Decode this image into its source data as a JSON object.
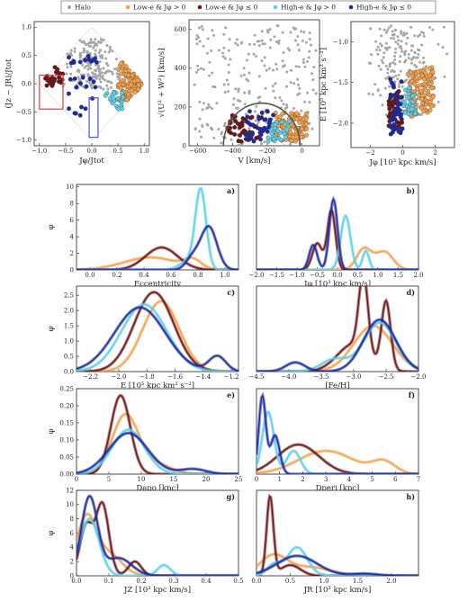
{
  "legend": [
    {
      "label": "Halo",
      "color": "#a6a6a6"
    },
    {
      "label": "Low-e & Jφ > 0",
      "color": "#f5a14a"
    },
    {
      "label": "Low-e & Jφ ≤ 0",
      "color": "#6e1414"
    },
    {
      "label": "High-e & Jφ > 0",
      "color": "#5bd1e8"
    },
    {
      "label": "High-e & Jφ ≤ 0",
      "color": "#1c2aa6"
    }
  ],
  "chart_data": [
    {
      "type": "scatter",
      "id": "action-diamond",
      "xlabel": "Jφ/Jtot",
      "ylabel": "(Jz − JR)/Jtot",
      "xlim": [
        -1.1,
        1.1
      ],
      "ylim": [
        -1.1,
        1.1
      ],
      "xticks": [
        "−1.0",
        "−0.5",
        "0.0",
        "0.5",
        "1.0"
      ],
      "yticks": [
        "1.0",
        "0.5",
        "0.0",
        "−0.5",
        "−1.0"
      ]
    },
    {
      "type": "scatter",
      "id": "toomre",
      "xlabel": "V [km/s]",
      "ylabel": "√(U² + W²) [km/s]",
      "xlim": [
        -650,
        100
      ],
      "ylim": [
        0,
        650
      ],
      "xticks": [
        "−600",
        "−400",
        "−200",
        "0"
      ],
      "yticks": [
        "600",
        "400",
        "200",
        "0"
      ]
    },
    {
      "type": "scatter",
      "id": "energy-lz",
      "xlabel": "Jφ [10³ kpc km/s]",
      "ylabel": "E [10⁵ kpc km² s⁻²]",
      "xlim": [
        -3.2,
        3.2
      ],
      "ylim": [
        -2.3,
        -0.75
      ],
      "xticks": [
        "−2",
        "0",
        "2"
      ],
      "yticks": [
        "−1.0",
        "−1.5",
        "−2.0"
      ]
    },
    {
      "type": "line",
      "panel": "a)",
      "xlabel": "Eccentricity",
      "ylabel": "φ",
      "xlim": [
        -0.1,
        1.1
      ],
      "ylim": [
        0,
        10.3
      ],
      "xticks": [
        "0.0",
        "0.2",
        "0.4",
        "0.6",
        "0.8",
        "1.0"
      ],
      "yticks": [
        "0",
        "2",
        "4",
        "6",
        "8",
        "10"
      ],
      "series": [
        {
          "color": "#f5a14a",
          "peaks": [
            [
              0.45,
              1.5,
              0.2
            ],
            [
              0.76,
              1.0,
              0.06
            ]
          ]
        },
        {
          "color": "#6e1414",
          "peaks": [
            [
              0.53,
              2.7,
              0.12
            ]
          ]
        },
        {
          "color": "#5bd1e8",
          "peaks": [
            [
              0.82,
              9.6,
              0.04
            ],
            [
              0.72,
              1.0,
              0.06
            ]
          ]
        },
        {
          "color": "#1c2aa6",
          "peaks": [
            [
              0.88,
              5.2,
              0.06
            ],
            [
              0.76,
              1.4,
              0.05
            ]
          ]
        }
      ]
    },
    {
      "type": "line",
      "panel": "b)",
      "xlabel": "Jφ [10³ kpc km/s]",
      "ylabel": "",
      "xlim": [
        -2.0,
        2.0
      ],
      "ylim": [
        0,
        10.3
      ],
      "xticks": [
        "−2.0",
        "−1.5",
        "−1.0",
        "−0.5",
        "0.0",
        "0.5",
        "1.0",
        "1.5",
        "2.0"
      ],
      "yticks": [],
      "series": [
        {
          "color": "#f5a14a",
          "peaks": [
            [
              0.65,
              2.5,
              0.18
            ],
            [
              1.15,
              2.2,
              0.22
            ]
          ]
        },
        {
          "color": "#6e1414",
          "peaks": [
            [
              -0.5,
              3.2,
              0.12
            ],
            [
              -0.15,
              7.2,
              0.1
            ]
          ]
        },
        {
          "color": "#5bd1e8",
          "peaks": [
            [
              0.2,
              6.5,
              0.12
            ],
            [
              0.7,
              2.3,
              0.08
            ]
          ]
        },
        {
          "color": "#1c2aa6",
          "peaks": [
            [
              -0.6,
              3.0,
              0.1
            ],
            [
              -0.1,
              8.5,
              0.1
            ]
          ]
        }
      ]
    },
    {
      "type": "line",
      "panel": "c)",
      "xlabel": "E [10⁵ kpc km² s⁻²]",
      "ylabel": "φ",
      "xlim": [
        -2.3,
        -1.15
      ],
      "ylim": [
        0,
        2.8
      ],
      "xticks": [
        "−2.2",
        "−2.0",
        "−1.8",
        "−1.6",
        "−1.4",
        "−1.2"
      ],
      "yticks": [
        "0.0",
        "0.5",
        "1.0",
        "1.5",
        "2.0",
        "2.5"
      ],
      "series": [
        {
          "color": "#f5a14a",
          "peaks": [
            [
              -1.7,
              2.3,
              0.13
            ]
          ]
        },
        {
          "color": "#6e1414",
          "peaks": [
            [
              -1.75,
              2.6,
              0.14
            ]
          ]
        },
        {
          "color": "#5bd1e8",
          "peaks": [
            [
              -1.82,
              2.2,
              0.16
            ]
          ]
        },
        {
          "color": "#1c2aa6",
          "peaks": [
            [
              -1.85,
              2.1,
              0.18
            ],
            [
              -1.3,
              0.5,
              0.06
            ]
          ]
        }
      ]
    },
    {
      "type": "line",
      "panel": "d)",
      "xlabel": "[Fe/H]",
      "ylabel": "",
      "xlim": [
        -4.5,
        -2.0
      ],
      "ylim": [
        0,
        2.8
      ],
      "xticks": [
        "−4.5",
        "−4.0",
        "−3.5",
        "−3.0",
        "−2.5",
        "−2.0"
      ],
      "yticks": [],
      "series": [
        {
          "color": "#f5a14a",
          "peaks": [
            [
              -2.7,
              1.5,
              0.3
            ]
          ]
        },
        {
          "color": "#6e1414",
          "peaks": [
            [
              -2.85,
              2.5,
              0.07
            ],
            [
              -2.5,
              2.2,
              0.07
            ],
            [
              -3.0,
              0.9,
              0.25
            ]
          ]
        },
        {
          "color": "#5bd1e8",
          "peaks": [
            [
              -2.6,
              1.6,
              0.25
            ],
            [
              -3.3,
              0.4,
              0.2
            ]
          ]
        },
        {
          "color": "#1c2aa6",
          "peaks": [
            [
              -2.6,
              1.7,
              0.25
            ],
            [
              -3.9,
              0.3,
              0.15
            ]
          ]
        }
      ]
    },
    {
      "type": "line",
      "panel": "e)",
      "xlabel": "Dapo [kpc]",
      "ylabel": "φ",
      "xlim": [
        0,
        25
      ],
      "ylim": [
        0,
        0.25
      ],
      "xticks": [
        "0",
        "5",
        "10",
        "15",
        "20",
        "25"
      ],
      "yticks": [
        "0.00",
        "0.05",
        "0.10",
        "0.15",
        "0.20",
        "0.25"
      ],
      "series": [
        {
          "color": "#f5a14a",
          "peaks": [
            [
              7.5,
              0.17,
              2.0
            ],
            [
              12,
              0.03,
              2.5
            ]
          ]
        },
        {
          "color": "#6e1414",
          "peaks": [
            [
              6.8,
              0.23,
              1.5
            ]
          ]
        },
        {
          "color": "#5bd1e8",
          "peaks": [
            [
              8.0,
              0.13,
              2.5
            ]
          ]
        },
        {
          "color": "#1c2aa6",
          "peaks": [
            [
              8.0,
              0.12,
              3.0
            ],
            [
              18,
              0.015,
              2.0
            ]
          ]
        }
      ]
    },
    {
      "type": "line",
      "panel": "f)",
      "xlabel": "Dperi [kpc]",
      "ylabel": "",
      "xlim": [
        0,
        7
      ],
      "ylim": [
        0,
        1.1
      ],
      "xticks": [
        "0",
        "1",
        "2",
        "3",
        "4",
        "5",
        "6",
        "7"
      ],
      "yticks": [],
      "series": [
        {
          "color": "#f5a14a",
          "peaks": [
            [
              3.0,
              0.3,
              1.2
            ],
            [
              5.5,
              0.15,
              0.5
            ]
          ]
        },
        {
          "color": "#6e1414",
          "peaks": [
            [
              1.8,
              0.38,
              0.9
            ]
          ]
        },
        {
          "color": "#5bd1e8",
          "peaks": [
            [
              0.5,
              0.8,
              0.25
            ],
            [
              1.6,
              0.3,
              0.3
            ]
          ]
        },
        {
          "color": "#1c2aa6",
          "peaks": [
            [
              0.25,
              1.0,
              0.15
            ],
            [
              0.8,
              0.5,
              0.2
            ]
          ]
        }
      ]
    },
    {
      "type": "line",
      "panel": "g)",
      "xlabel": "JZ [10³ kpc km/s]",
      "ylabel": "φ",
      "xlim": [
        0,
        0.5
      ],
      "ylim": [
        0,
        12
      ],
      "xticks": [
        "0.0",
        "0.1",
        "0.2",
        "0.3",
        "0.4",
        "0.5"
      ],
      "yticks": [
        "0",
        "2",
        "4",
        "6",
        "8",
        "10",
        "12"
      ],
      "series": [
        {
          "color": "#f5a14a",
          "peaks": [
            [
              0.03,
              8.0,
              0.03
            ],
            [
              0.1,
              3.0,
              0.04
            ]
          ]
        },
        {
          "color": "#6e1414",
          "peaks": [
            [
              0.03,
              7.0,
              0.02
            ],
            [
              0.08,
              10.0,
              0.02
            ],
            [
              0.18,
              2.0,
              0.02
            ]
          ]
        },
        {
          "color": "#5bd1e8",
          "peaks": [
            [
              0.04,
              8.0,
              0.03
            ],
            [
              0.27,
              1.5,
              0.02
            ]
          ]
        },
        {
          "color": "#1c2aa6",
          "peaks": [
            [
              0.04,
              11.0,
              0.025
            ],
            [
              0.13,
              2.5,
              0.04
            ]
          ]
        }
      ]
    },
    {
      "type": "line",
      "panel": "h)",
      "xlabel": "JR [10³ kpc km/s]",
      "ylabel": "",
      "xlim": [
        0,
        2.4
      ],
      "ylim": [
        0,
        12
      ],
      "xticks": [
        "0.0",
        "0.5",
        "1.0",
        "1.5",
        "2.0"
      ],
      "yticks": [],
      "series": [
        {
          "color": "#f5a14a",
          "peaks": [
            [
              0.25,
              2.8,
              0.2
            ],
            [
              0.8,
              1.2,
              0.3
            ]
          ]
        },
        {
          "color": "#6e1414",
          "peaks": [
            [
              0.2,
              11.0,
              0.05
            ],
            [
              0.5,
              1.5,
              0.15
            ]
          ]
        },
        {
          "color": "#5bd1e8",
          "peaks": [
            [
              0.6,
              4.0,
              0.15
            ],
            [
              0.25,
              1.5,
              0.1
            ]
          ]
        },
        {
          "color": "#1c2aa6",
          "peaks": [
            [
              0.6,
              2.8,
              0.3
            ],
            [
              1.6,
              0.3,
              0.2
            ]
          ]
        }
      ]
    }
  ]
}
